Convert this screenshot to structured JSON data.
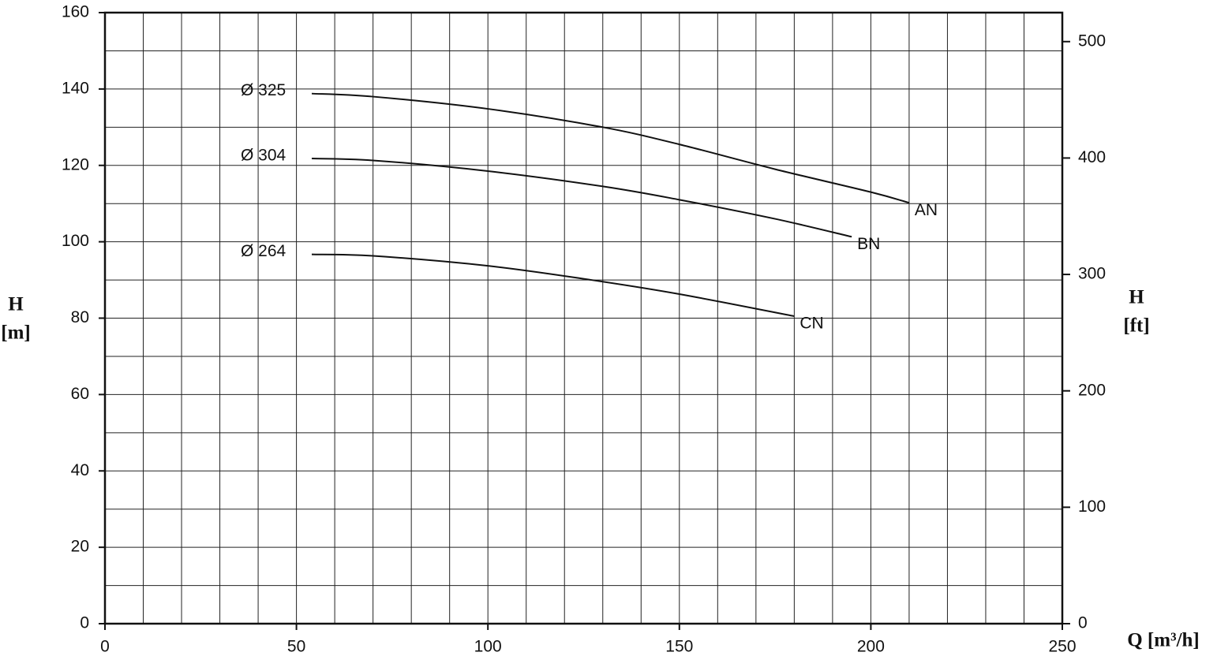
{
  "chart_data": {
    "type": "line",
    "x_label": "Q [m³/h]",
    "y_label": [
      "H",
      "[m]"
    ],
    "y2_label": [
      "H",
      "[ft]"
    ],
    "xlim": [
      0,
      250
    ],
    "xticks": [
      0,
      50,
      100,
      150,
      200,
      250
    ],
    "ylim": [
      0,
      160
    ],
    "yticks": [
      0,
      20,
      40,
      60,
      80,
      100,
      120,
      140,
      160
    ],
    "y2lim": [
      0,
      524.9
    ],
    "y2ticks": [
      0,
      100,
      200,
      300,
      400,
      500
    ],
    "x_grid_step": 10,
    "y_grid_step": 10,
    "grid": true,
    "series": [
      {
        "name": "AN",
        "diameter": "Ø 325",
        "color": "#111111",
        "x": [
          54,
          70,
          100,
          130,
          150,
          175,
          200,
          210
        ],
        "values": [
          138.8,
          138.0,
          134.8,
          130.0,
          125.5,
          119.0,
          113.0,
          110.2
        ]
      },
      {
        "name": "BN",
        "diameter": "Ø 304",
        "color": "#111111",
        "x": [
          54,
          70,
          100,
          130,
          150,
          175,
          195
        ],
        "values": [
          121.8,
          121.3,
          118.5,
          114.5,
          111.0,
          106.0,
          101.3
        ]
      },
      {
        "name": "CN",
        "diameter": "Ø 264",
        "color": "#111111",
        "x": [
          54,
          70,
          100,
          127,
          150,
          180
        ],
        "values": [
          96.7,
          96.3,
          93.7,
          90.0,
          86.3,
          80.5
        ]
      }
    ]
  }
}
